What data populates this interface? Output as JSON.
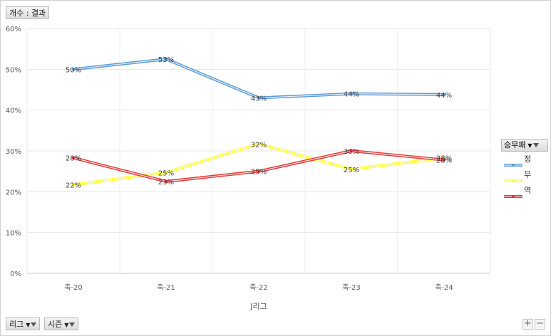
{
  "value_field": {
    "label": "개수 : 결과"
  },
  "axis_field_buttons": [
    {
      "label": "리그"
    },
    {
      "label": "시즌"
    }
  ],
  "legend": {
    "title": "승무패"
  },
  "zoom": {
    "plus": "+",
    "minus": "−"
  },
  "chart_data": {
    "type": "line",
    "title": "",
    "xlabel": "J리그",
    "ylabel": "",
    "categories": [
      "축-20",
      "축-21",
      "축-22",
      "축-23",
      "축-24"
    ],
    "ylim": [
      0,
      0.6
    ],
    "yticks": [
      "0%",
      "10%",
      "20%",
      "30%",
      "40%",
      "50%",
      "60%"
    ],
    "grid": true,
    "legend_position": "right",
    "series": [
      {
        "name": "정",
        "color": "#5b9bd5",
        "values": [
          0.5,
          0.525,
          0.43,
          0.44,
          0.438
        ],
        "labels": [
          "50%",
          "53%",
          "43%",
          "44%",
          "44%"
        ]
      },
      {
        "name": "무",
        "color": "#ffff33",
        "values": [
          0.217,
          0.247,
          0.317,
          0.255,
          0.283
        ],
        "labels": [
          "22%",
          "25%",
          "32%",
          "25%",
          "28%"
        ]
      },
      {
        "name": "역",
        "color": "#e03a3a",
        "values": [
          0.283,
          0.225,
          0.25,
          0.3,
          0.278
        ],
        "labels": [
          "28%",
          "23%",
          "25%",
          "30%",
          "28%"
        ]
      }
    ]
  }
}
